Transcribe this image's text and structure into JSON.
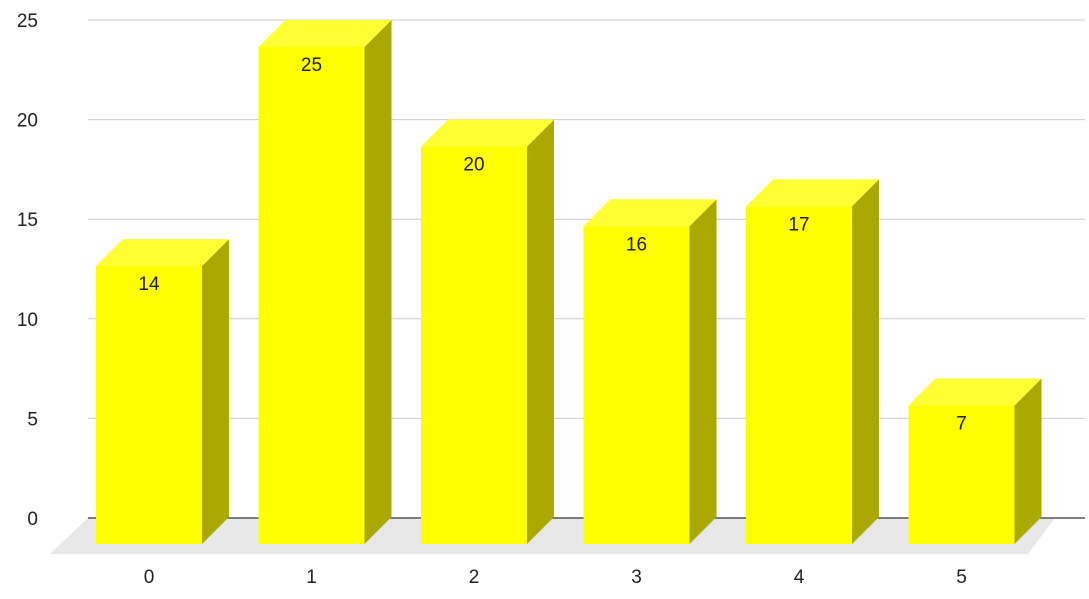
{
  "chart_data": {
    "type": "bar",
    "style": "3d-columns",
    "categories": [
      "0",
      "1",
      "2",
      "3",
      "4",
      "5"
    ],
    "values": [
      14,
      25,
      20,
      16,
      17,
      7
    ],
    "data_labels": [
      "14",
      "25",
      "20",
      "16",
      "17",
      "7"
    ],
    "ylim": [
      0,
      25
    ],
    "yticks": [
      0,
      5,
      10,
      15,
      20,
      25
    ],
    "ytick_labels": [
      "0",
      "5",
      "10",
      "15",
      "20",
      "25"
    ],
    "grid": true,
    "legend": "none",
    "title": "",
    "xlabel": "",
    "ylabel": ""
  },
  "colors": {
    "bar_front": "#ffff00",
    "bar_top": "#ffff33",
    "bar_side": "#a9a900",
    "floor": "#e8e8e8",
    "gridline": "#cccccc",
    "baseline": "#555555",
    "text": "#222222"
  }
}
